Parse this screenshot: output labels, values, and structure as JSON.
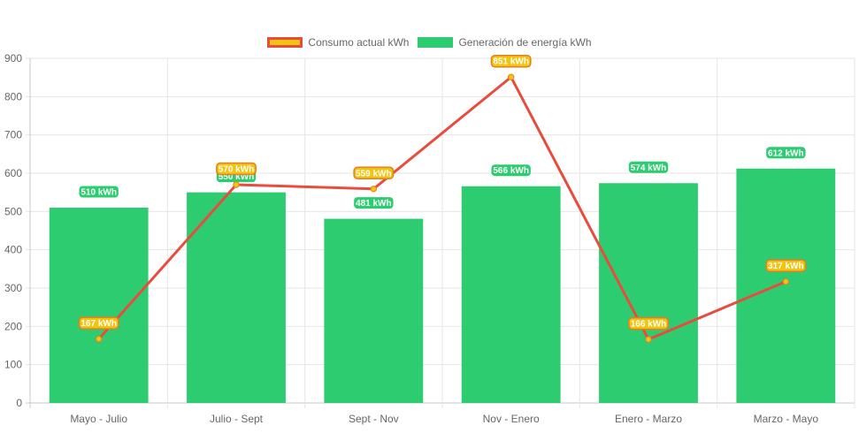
{
  "chart_data": {
    "type": "bar",
    "title": "",
    "xlabel": "",
    "ylabel": "",
    "categories": [
      "Mayo - Julio",
      "Julio - Sept",
      "Sept - Nov",
      "Nov - Enero",
      "Enero - Marzo",
      "Marzo - Mayo"
    ],
    "ylim": [
      0,
      900
    ],
    "yticks": [
      0,
      100,
      200,
      300,
      400,
      500,
      600,
      700,
      800,
      900
    ],
    "grid": true,
    "legend_position": "top",
    "series": [
      {
        "name": "Consumo actual kWh",
        "type": "line",
        "values": [
          167,
          570,
          559,
          851,
          166,
          317
        ],
        "labels": [
          "167 kWh",
          "570 kWh",
          "559 kWh",
          "851 kWh",
          "166 kWh",
          "317 kWh"
        ],
        "color": "#e74c3c",
        "fill": "#f1c40f"
      },
      {
        "name": "Generación de energía kWh",
        "type": "bar",
        "values": [
          510,
          550,
          481,
          566,
          574,
          612
        ],
        "labels": [
          "510 kWh",
          "550 kWh",
          "481 kWh",
          "566 kWh",
          "574 kWh",
          "612 kWh"
        ],
        "color": "#2ecc71"
      }
    ]
  }
}
